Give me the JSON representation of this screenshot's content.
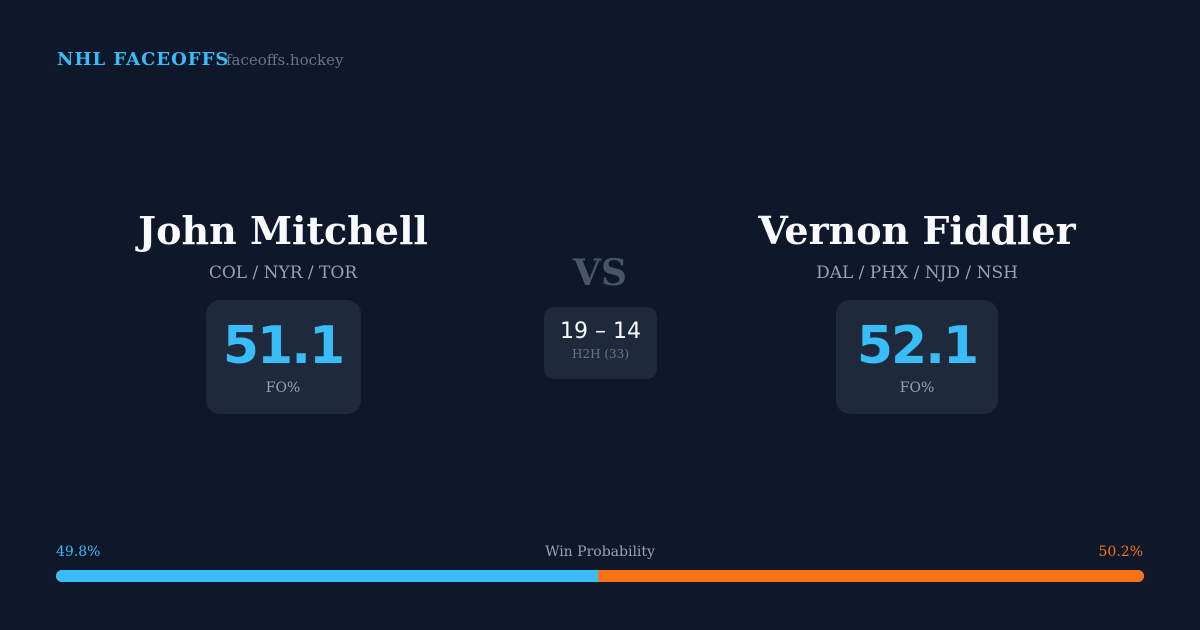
{
  "header": {
    "brand": "NHL FACEOFFS",
    "site": "faceoffs.hockey"
  },
  "player1": {
    "name": "John Mitchell",
    "teams": "COL / NYR / TOR",
    "fo_pct": "51.1",
    "fo_label": "FO%"
  },
  "player2": {
    "name": "Vernon Fiddler",
    "teams": "DAL / PHX / NJD / NSH",
    "fo_pct": "52.1",
    "fo_label": "FO%"
  },
  "versus": {
    "label": "VS",
    "score": "19 – 14",
    "h2h_label": "H2H (33)"
  },
  "win_probability": {
    "label": "Win Probability",
    "left_pct": "49.8%",
    "right_pct": "50.2%",
    "left_value": 49.8,
    "right_value": 50.2,
    "left_color": "#38bdf8",
    "right_color": "#f97316"
  }
}
